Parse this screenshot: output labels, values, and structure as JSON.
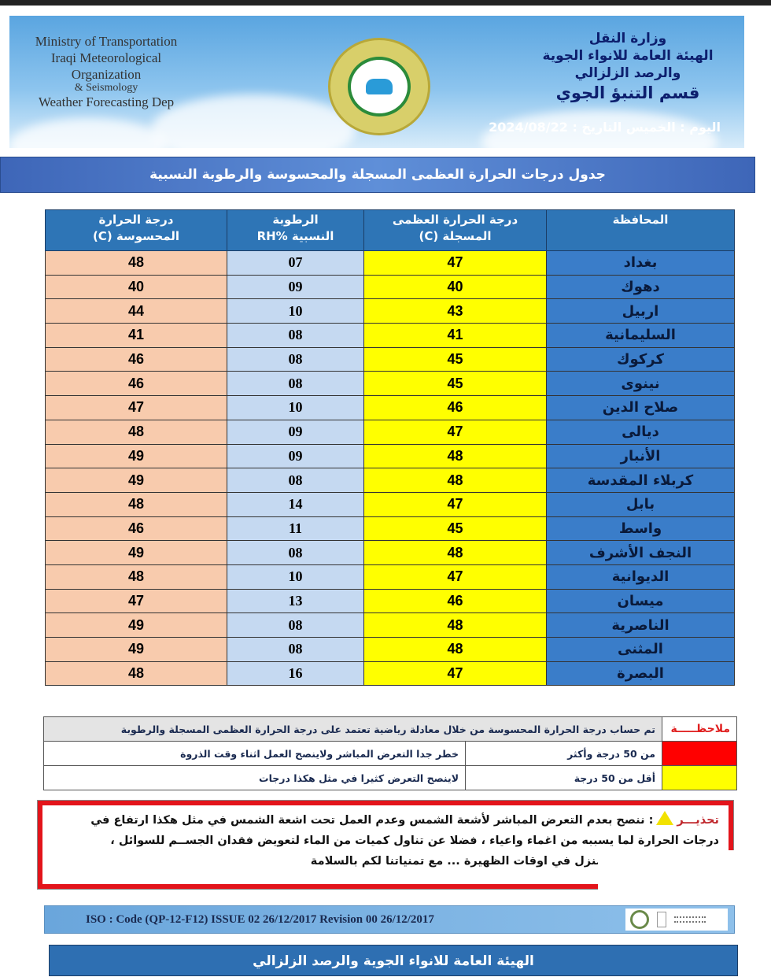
{
  "header": {
    "english_lines": [
      "Ministry of Transportation",
      "Iraqi Meteorological Organization",
      "& Seismology",
      "Weather Forecasting Dep"
    ],
    "arabic_lines": [
      "وزارة النقل",
      "الهيئة العامة للانواء الجوية",
      "والرصد الزلزالي",
      "قسم التنبؤ الجوي"
    ],
    "date_line": "اليوم : الخميس التاريخ : 2024/08/22"
  },
  "title": "جدول درجات الحرارة العظمى المسجلة والمحسوسة والرطوبة النسبية",
  "table": {
    "headers": {
      "province": "المحافظة",
      "max_temp": [
        "درجة الحرارة العظمى",
        "المسجلة (C)"
      ],
      "humidity": [
        "الرطوبة",
        "النسبية %RH"
      ],
      "feels_like": [
        "درجة الحرارة",
        "المحسوسة (C)"
      ]
    },
    "rows": [
      {
        "province": "بغداد",
        "max": "47",
        "rh": "07",
        "feel": "48"
      },
      {
        "province": "دهوك",
        "max": "40",
        "rh": "09",
        "feel": "40"
      },
      {
        "province": "اربيل",
        "max": "43",
        "rh": "10",
        "feel": "44"
      },
      {
        "province": "السليمانية",
        "max": "41",
        "rh": "08",
        "feel": "41"
      },
      {
        "province": "كركوك",
        "max": "45",
        "rh": "08",
        "feel": "46"
      },
      {
        "province": "نينوى",
        "max": "45",
        "rh": "08",
        "feel": "46"
      },
      {
        "province": "صلاح الدين",
        "max": "46",
        "rh": "10",
        "feel": "47"
      },
      {
        "province": "ديالى",
        "max": "47",
        "rh": "09",
        "feel": "48"
      },
      {
        "province": "الأنبار",
        "max": "48",
        "rh": "09",
        "feel": "49"
      },
      {
        "province": "كربلاء المقدسة",
        "max": "48",
        "rh": "08",
        "feel": "49"
      },
      {
        "province": "بابل",
        "max": "47",
        "rh": "14",
        "feel": "48"
      },
      {
        "province": "واسط",
        "max": "45",
        "rh": "11",
        "feel": "46"
      },
      {
        "province": "النجف الأشرف",
        "max": "48",
        "rh": "08",
        "feel": "49"
      },
      {
        "province": "الديوانية",
        "max": "47",
        "rh": "10",
        "feel": "48"
      },
      {
        "province": "ميسان",
        "max": "46",
        "rh": "13",
        "feel": "47"
      },
      {
        "province": "الناصرية",
        "max": "48",
        "rh": "08",
        "feel": "49"
      },
      {
        "province": "المثنى",
        "max": "48",
        "rh": "08",
        "feel": "49"
      },
      {
        "province": "البصرة",
        "max": "47",
        "rh": "16",
        "feel": "48"
      }
    ]
  },
  "note": {
    "label": "ملاحظـــــة",
    "text": "تم حساب درجة الحرارة المحسوسة من خلال معادلة رياضية تعتمد على درجة الحرارة العظمى المسجلة والرطوبة",
    "legend": [
      {
        "color": "#ff0000",
        "range": "من 50 درجة وأكثر",
        "advice": "خطر جدا التعرض المباشر ولاينصح العمل اثناء وقت الذروة"
      },
      {
        "color": "#ffff00",
        "range": "أقل  من 50 درجة",
        "advice": "لاينصح التعرض كثيرا في مثل هكذا درجات"
      }
    ]
  },
  "warning": {
    "label": "تحذيـــر",
    "line1": ": ننصح بعدم التعرض المباشر لأشعة الشمس وعدم العمل تحت اشعة الشمس في مثل هكذا ارتفاع في",
    "line2": "درجات الحرارة لما يسببه من اغماء واعياء ،   فضلا عن  تناول كميات من الماء لتعويض فقدان الجســم للسوائل ،",
    "line3": "و يفضل البقاء في المنزل في اوقات الظهيرة ... مع تمنياتنا لكم بالسلامة"
  },
  "iso": "ISO : Code (QP-12-F12)   ISSUE   02 26/12/2017    Revision 00 26/12/2017",
  "footer": "الهيئة العامة للانواء الجوية والرصد الزلزالي",
  "colors": {
    "header_blue": "#2e75b6",
    "province_blue": "#3a7dc9",
    "max_yellow": "#ffff00",
    "rh_blue": "#c5d9f1",
    "feel_peach": "#f8cbad",
    "warning_red": "#e3141b"
  }
}
